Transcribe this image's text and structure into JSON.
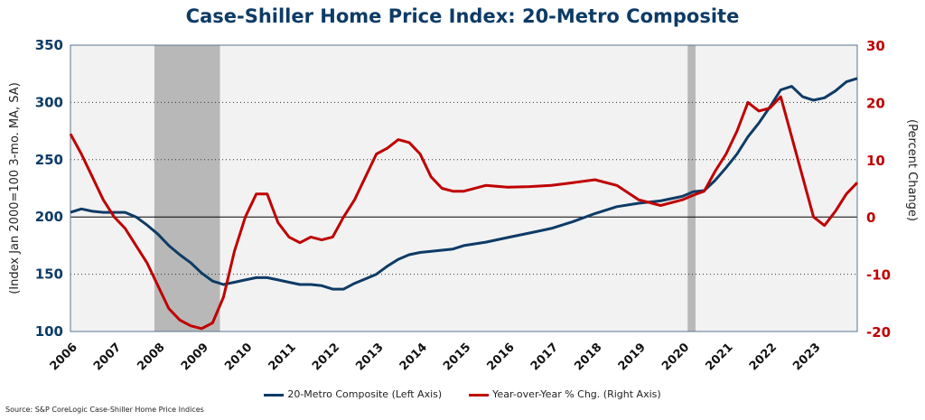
{
  "chart_data": {
    "type": "line",
    "title": "Case-Shiller Home Price Index: 20-Metro Composite",
    "ylabel_left": "(Index Jan 2000=100 3-mo. MA, SA)",
    "ylabel_right": "(Percent Change)",
    "ylim_left": [
      100,
      350
    ],
    "ylim_right": [
      -20,
      30
    ],
    "yticks_left": [
      100,
      150,
      200,
      250,
      300,
      350
    ],
    "yticks_right": [
      -20,
      -10,
      0,
      10,
      20,
      30
    ],
    "xlim": [
      2006,
      2024
    ],
    "xticks": [
      "2006",
      "2007",
      "2008",
      "2009",
      "2010",
      "2011",
      "2012",
      "2013",
      "2014",
      "2015",
      "2016",
      "2017",
      "2018",
      "2019",
      "2020",
      "2021",
      "2022",
      "2023"
    ],
    "grid": "horizontal-dotted",
    "legend_position": "bottom",
    "recessions": [
      [
        2007.92,
        2009.42
      ],
      [
        2020.12,
        2020.3
      ]
    ],
    "series": [
      {
        "name": "20-Metro Composite (Left Axis)",
        "axis": "left",
        "color": "#0d3b66",
        "x": [
          2006,
          2006.25,
          2006.5,
          2006.75,
          2007,
          2007.25,
          2007.5,
          2007.75,
          2008,
          2008.25,
          2008.5,
          2008.75,
          2009,
          2009.25,
          2009.5,
          2009.75,
          2010,
          2010.25,
          2010.5,
          2010.75,
          2011,
          2011.25,
          2011.5,
          2011.75,
          2012,
          2012.25,
          2012.5,
          2012.75,
          2013,
          2013.25,
          2013.5,
          2013.75,
          2014,
          2014.25,
          2014.5,
          2014.75,
          2015,
          2015.5,
          2016,
          2016.5,
          2017,
          2017.5,
          2018,
          2018.5,
          2019,
          2019.5,
          2020,
          2020.25,
          2020.5,
          2020.75,
          2021,
          2021.25,
          2021.5,
          2021.75,
          2022,
          2022.25,
          2022.5,
          2022.75,
          2023,
          2023.25,
          2023.5,
          2023.75,
          2024
        ],
        "values": [
          204,
          207,
          205,
          204,
          204,
          204,
          200,
          193,
          185,
          175,
          167,
          160,
          151,
          144,
          141,
          143,
          145,
          147,
          147,
          145,
          143,
          141,
          141,
          140,
          137,
          137,
          142,
          146,
          150,
          157,
          163,
          167,
          169,
          170,
          171,
          172,
          175,
          178,
          182,
          186,
          190,
          196,
          203,
          209,
          212,
          214,
          218,
          222,
          223,
          232,
          243,
          255,
          270,
          282,
          296,
          311,
          314,
          305,
          302,
          304,
          310,
          318,
          321
        ]
      },
      {
        "name": "Year-over-Year % Chg. (Right Axis)",
        "axis": "right",
        "color": "#c00000",
        "x": [
          2006,
          2006.25,
          2006.5,
          2006.75,
          2007,
          2007.25,
          2007.5,
          2007.75,
          2008,
          2008.25,
          2008.5,
          2008.75,
          2009,
          2009.25,
          2009.5,
          2009.75,
          2010,
          2010.25,
          2010.5,
          2010.75,
          2011,
          2011.25,
          2011.5,
          2011.75,
          2012,
          2012.25,
          2012.5,
          2012.75,
          2013,
          2013.25,
          2013.5,
          2013.75,
          2014,
          2014.25,
          2014.5,
          2014.75,
          2015,
          2015.5,
          2016,
          2016.5,
          2017,
          2017.5,
          2018,
          2018.5,
          2019,
          2019.5,
          2020,
          2020.25,
          2020.5,
          2020.75,
          2021,
          2021.25,
          2021.5,
          2021.75,
          2022,
          2022.25,
          2022.5,
          2022.75,
          2023,
          2023.25,
          2023.5,
          2023.75,
          2024
        ],
        "values": [
          14.5,
          11,
          7,
          3,
          0,
          -2,
          -5,
          -8,
          -12,
          -16,
          -18,
          -19,
          -19.5,
          -18.5,
          -14,
          -6,
          0,
          4,
          4,
          -1,
          -3.5,
          -4.5,
          -3.5,
          -4,
          -3.5,
          0,
          3,
          7,
          11,
          12,
          13.5,
          13,
          11,
          7,
          5,
          4.5,
          4.5,
          5.5,
          5.2,
          5.3,
          5.5,
          6,
          6.5,
          5.5,
          3,
          2,
          3,
          3.8,
          4.5,
          8,
          11,
          15,
          20,
          18.5,
          19,
          21,
          14,
          7,
          0,
          -1.5,
          1,
          4,
          6
        ]
      }
    ],
    "source": "Source: S&P CoreLogic Case-Shiller Home Price Indices"
  }
}
